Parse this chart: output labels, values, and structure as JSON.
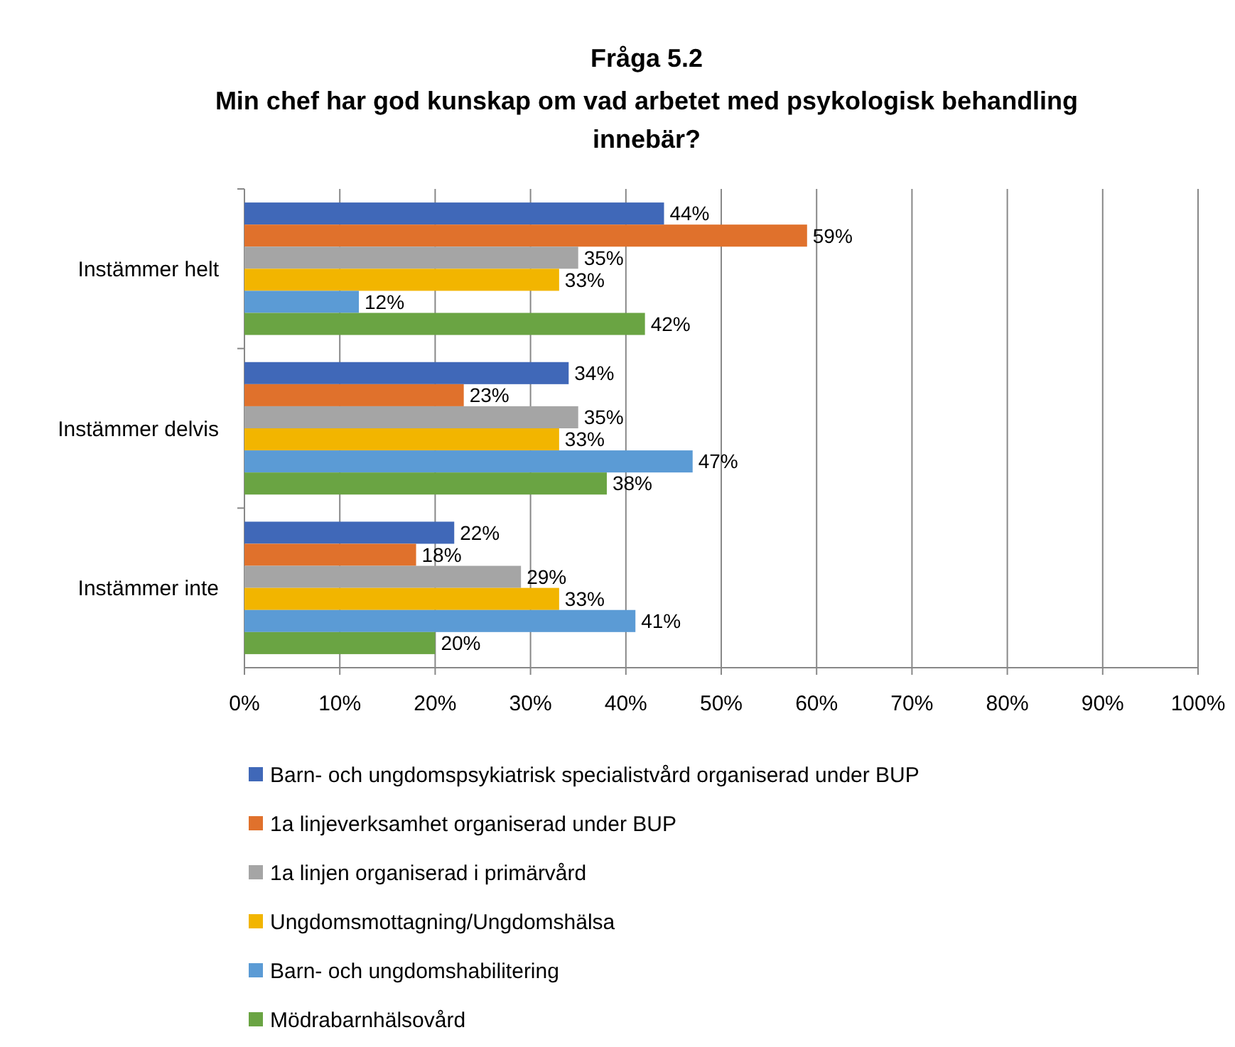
{
  "chart_data": {
    "type": "bar",
    "orientation": "horizontal",
    "title": "Fråga 5.2",
    "subtitle": "Min chef har god kunskap om vad arbetet med psykologisk behandling innebär?",
    "categories": [
      "Instämmer helt",
      "Instämmer delvis",
      "Instämmer inte"
    ],
    "series": [
      {
        "name": "Barn- och ungdomspsykiatrisk specialistvård organiserad under BUP",
        "color": "#4068b8",
        "values": [
          44,
          34,
          22
        ],
        "value_labels": [
          "44%",
          "34%",
          "22%"
        ]
      },
      {
        "name": "1a linjeverksamhet organiserad under BUP",
        "color": "#e0712c",
        "values": [
          59,
          23,
          18
        ],
        "value_labels": [
          "59%",
          "23%",
          "18%"
        ]
      },
      {
        "name": "1a linjen organiserad i primärvård",
        "color": "#a5a5a5",
        "values": [
          35,
          35,
          29
        ],
        "value_labels": [
          "35%",
          "35%",
          "29%"
        ]
      },
      {
        "name": "Ungdomsmottagning/Ungdomshälsa",
        "color": "#f2b500",
        "values": [
          33,
          33,
          33
        ],
        "value_labels": [
          "33%",
          "33%",
          "33%"
        ]
      },
      {
        "name": "Barn- och ungdomshabilitering",
        "color": "#5b9bd5",
        "values": [
          12,
          47,
          41
        ],
        "value_labels": [
          "12%",
          "47%",
          "41%"
        ]
      },
      {
        "name": "Mödrabarnhälsovård",
        "color": "#6aa443",
        "values": [
          42,
          38,
          20
        ],
        "value_labels": [
          "42%",
          "38%",
          "20%"
        ]
      }
    ],
    "xlim": [
      0,
      100
    ],
    "xticks": [
      {
        "value": 0,
        "label": "0%"
      },
      {
        "value": 10,
        "label": "10%"
      },
      {
        "value": 20,
        "label": "20%"
      },
      {
        "value": 30,
        "label": "30%"
      },
      {
        "value": 40,
        "label": "40%"
      },
      {
        "value": 50,
        "label": "50%"
      },
      {
        "value": 60,
        "label": "60%"
      },
      {
        "value": 70,
        "label": "70%"
      },
      {
        "value": 80,
        "label": "80%"
      },
      {
        "value": 90,
        "label": "90%"
      },
      {
        "value": 100,
        "label": "100%"
      }
    ],
    "grid": "x",
    "legend": "bottom"
  }
}
